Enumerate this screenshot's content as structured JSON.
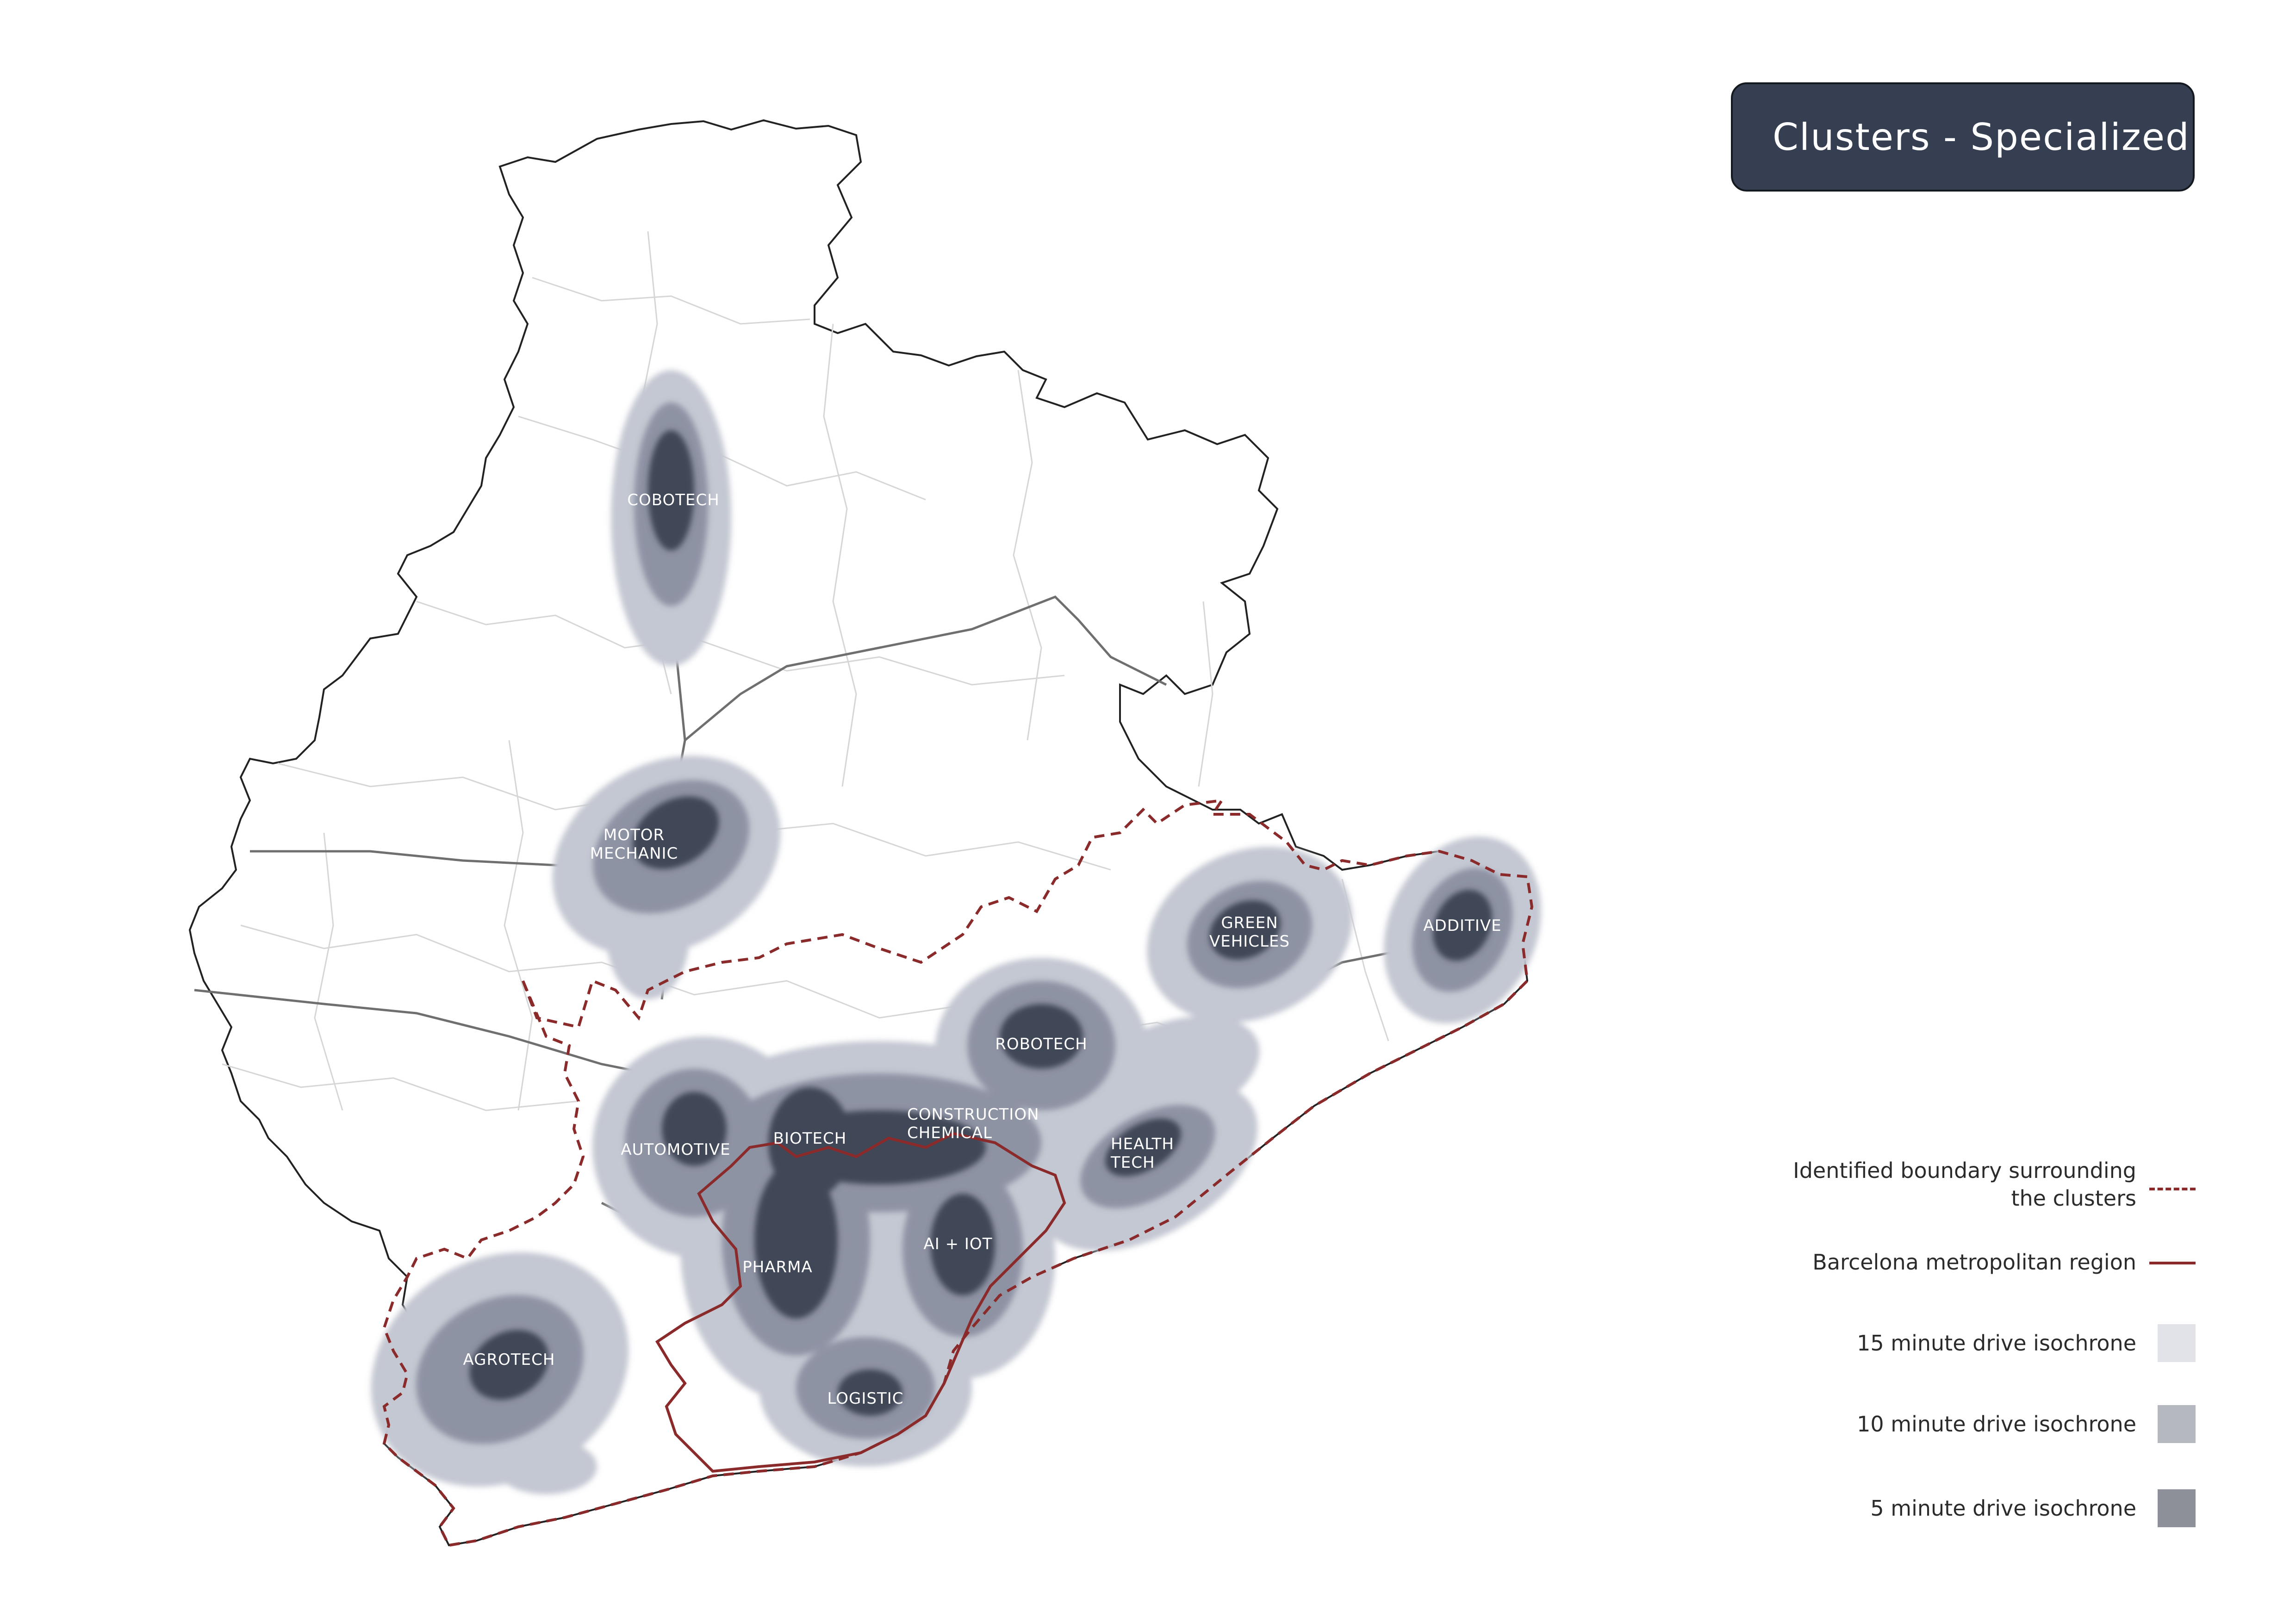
{
  "title": "Clusters - Specialized",
  "colors": {
    "isochrone_15": "#c4c8d2",
    "isochrone_10": "#8e93a4",
    "isochrone_5": "#404656",
    "boundary": "#8b2a2a",
    "title_bg": "#353f51"
  },
  "clusters": [
    {
      "id": "cobotech",
      "label": "COBOTECH"
    },
    {
      "id": "motor",
      "label": "MOTOR\nMECHANIC"
    },
    {
      "id": "green",
      "label": "GREEN\nVEHICLES"
    },
    {
      "id": "additive",
      "label": "ADDITIVE"
    },
    {
      "id": "robotech",
      "label": "ROBOTECH"
    },
    {
      "id": "construction",
      "label": "CONSTRUCTION\nCHEMICAL"
    },
    {
      "id": "biotech",
      "label": "BIOTECH"
    },
    {
      "id": "automotive",
      "label": "AUTOMOTIVE"
    },
    {
      "id": "health",
      "label": "HEALTH\nTECH"
    },
    {
      "id": "ai",
      "label": "AI + IOT"
    },
    {
      "id": "pharma",
      "label": "PHARMA"
    },
    {
      "id": "agrotech",
      "label": "AGROTECH"
    },
    {
      "id": "logistic",
      "label": "LOGISTIC"
    }
  ],
  "legend": {
    "boundary_clusters": "Identified boundary surrounding\nthe clusters",
    "metro_region": "Barcelona metropolitan region",
    "iso15": "15 minute drive isochrone",
    "iso10": "10 minute drive isochrone",
    "iso5": "5 minute drive isochrone"
  }
}
